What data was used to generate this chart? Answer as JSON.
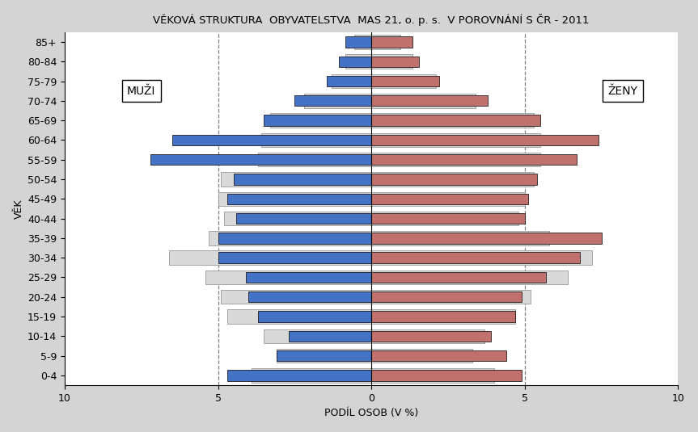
{
  "title": "VĚKOVÁ STRUKTURA  OBYVATELSTVA  MAS 21, o. p. s.  V POROVNÁNÍ S ČR - 2011",
  "xlabel": "PODÍL OSOB (V %)",
  "ylabel": "VĚK",
  "age_groups_bottom_to_top": [
    "0-4",
    "5-9",
    "10-14",
    "15-19",
    "20-24",
    "25-29",
    "30-34",
    "35-39",
    "40-44",
    "45-49",
    "50-54",
    "55-59",
    "60-64",
    "65-69",
    "70-74",
    "75-79",
    "80-84",
    "85+"
  ],
  "males_mas": [
    4.7,
    3.1,
    2.7,
    3.7,
    4.0,
    4.1,
    5.0,
    5.0,
    4.4,
    4.7,
    4.5,
    7.2,
    6.5,
    3.5,
    2.5,
    1.45,
    1.05,
    0.85
  ],
  "males_cr": [
    3.9,
    3.1,
    3.5,
    4.7,
    4.9,
    5.4,
    6.6,
    5.3,
    4.8,
    5.0,
    4.9,
    3.7,
    3.6,
    3.3,
    2.2,
    1.3,
    0.85,
    0.55
  ],
  "females_mas": [
    4.9,
    4.4,
    3.9,
    4.7,
    4.9,
    5.7,
    6.8,
    7.5,
    5.0,
    5.1,
    5.4,
    6.7,
    7.4,
    5.5,
    3.8,
    2.2,
    1.55,
    1.35
  ],
  "females_cr": [
    4.0,
    3.3,
    3.7,
    4.7,
    5.2,
    6.4,
    7.2,
    5.8,
    4.8,
    5.0,
    5.3,
    5.5,
    5.5,
    5.3,
    3.4,
    2.1,
    1.35,
    0.95
  ],
  "color_males": "#4472C4",
  "color_females": "#C0706D",
  "color_cr": "#D9D9D9",
  "color_cr_edge": "#999999",
  "xlim": 10,
  "legend_males": "MUŽI",
  "legend_females": "ŽENY",
  "title_fontsize": 9.5,
  "axis_label_fontsize": 9,
  "tick_fontsize": 9
}
